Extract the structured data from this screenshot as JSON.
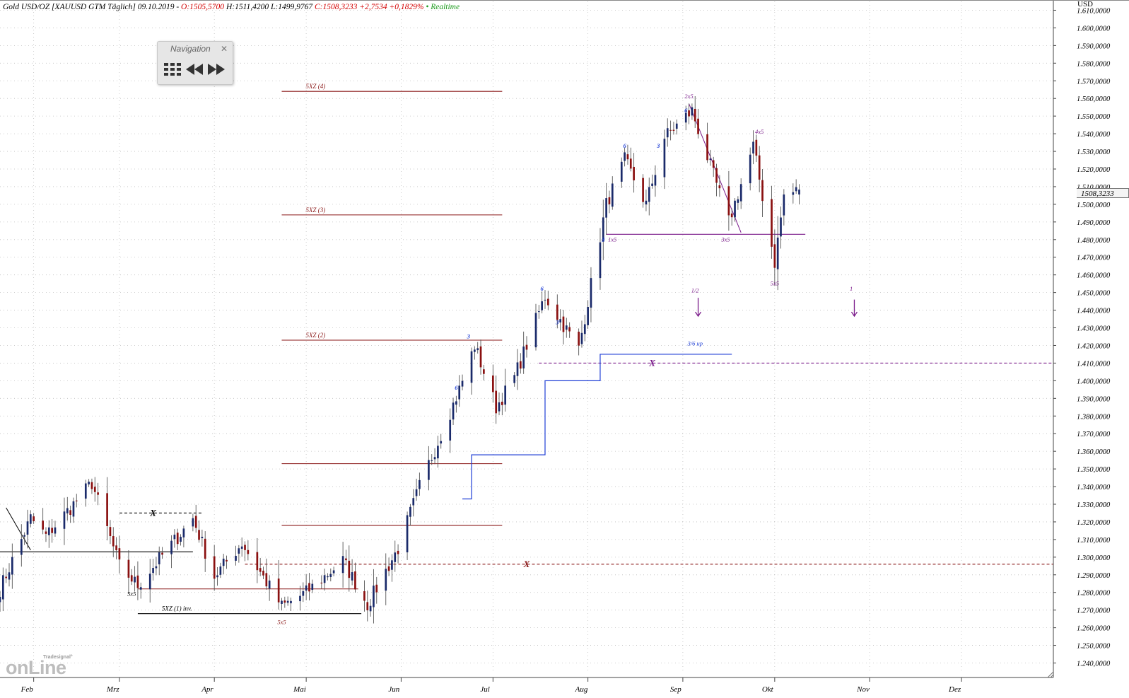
{
  "header": {
    "instrument": "Gold USD/OZ [XAUUSD GTM Täglich] 09.10.2019 -",
    "open": "O:1505,5700",
    "high": "H:1511,4200",
    "low": "L:1499,9767",
    "close": "C:1508,3233",
    "change": "+2,7534",
    "change_pct": "+0,1829%",
    "separator": "•",
    "realtime": "Realtime"
  },
  "navigation": {
    "title": "Navigation",
    "close_icon": "close-icon",
    "buttons": [
      {
        "name": "grid-icon"
      },
      {
        "name": "rewind-icon"
      },
      {
        "name": "fast-forward-icon"
      }
    ]
  },
  "currency_label": "USD",
  "price_tag": "1508,3233",
  "logo": {
    "small": "Tradesignal°",
    "big": "onLine"
  },
  "colors": {
    "bull": "#1a2a6a",
    "bear": "#8a1010",
    "level_red": "#8b1a1a",
    "wave_purple": "#7a1a8a",
    "stop_blue": "#1f3fd6",
    "label_blue": "#1f3fd6",
    "grid": "#bfbfbf"
  },
  "chart_data": {
    "type": "candlestick",
    "instrument": "Gold USD/OZ [XAUUSD GTM Täglich]",
    "ylim": [
      1235,
      1615
    ],
    "y_ticks": [
      1240,
      1250,
      1260,
      1270,
      1280,
      1290,
      1300,
      1310,
      1320,
      1330,
      1340,
      1350,
      1360,
      1370,
      1380,
      1390,
      1400,
      1410,
      1420,
      1430,
      1440,
      1450,
      1460,
      1470,
      1480,
      1490,
      1500,
      1510,
      1520,
      1530,
      1540,
      1550,
      1560,
      1570,
      1580,
      1590,
      1600,
      1610
    ],
    "y_tick_labels": [
      "1.240,0000",
      "1.250,0000",
      "1.260,0000",
      "1.270,0000",
      "1.280,0000",
      "1.290,0000",
      "1.300,0000",
      "1.310,0000",
      "1.320,0000",
      "1.330,0000",
      "1.340,0000",
      "1.350,0000",
      "1.360,0000",
      "1.370,0000",
      "1.380,0000",
      "1.390,0000",
      "1.400,0000",
      "1.410,0000",
      "1.420,0000",
      "1.430,0000",
      "1.440,0000",
      "1.450,0000",
      "1.460,0000",
      "1.470,0000",
      "1.480,0000",
      "1.490,0000",
      "1.500,0000",
      "1.510,0000",
      "1.520,0000",
      "1.530,0000",
      "1.540,0000",
      "1.550,0000",
      "1.560,0000",
      "1.570,0000",
      "1.580,0000",
      "1.590,0000",
      "1.600,0000",
      "1.610,0000"
    ],
    "x_range": [
      "2019-01-21",
      "2019-12-31"
    ],
    "months": [
      {
        "label": "Feb",
        "date": "2019-02-01"
      },
      {
        "label": "Mrz",
        "date": "2019-03-01"
      },
      {
        "label": "Apr",
        "date": "2019-04-01"
      },
      {
        "label": "Mai",
        "date": "2019-05-01"
      },
      {
        "label": "Jun",
        "date": "2019-06-01"
      },
      {
        "label": "Jul",
        "date": "2019-07-01"
      },
      {
        "label": "Aug",
        "date": "2019-08-01"
      },
      {
        "label": "Sep",
        "date": "2019-09-01"
      },
      {
        "label": "Okt",
        "date": "2019-10-01"
      },
      {
        "label": "Nov",
        "date": "2019-11-01"
      },
      {
        "label": "Dez",
        "date": "2019-12-01"
      }
    ],
    "anchors": [
      {
        "date": "2019-01-21",
        "close": 1282
      },
      {
        "date": "2019-01-31",
        "close": 1322
      },
      {
        "date": "2019-02-05",
        "close": 1312
      },
      {
        "date": "2019-02-20",
        "close": 1342
      },
      {
        "date": "2019-03-01",
        "close": 1295
      },
      {
        "date": "2019-03-07",
        "close": 1284
      },
      {
        "date": "2019-03-25",
        "close": 1322
      },
      {
        "date": "2019-04-01",
        "close": 1289
      },
      {
        "date": "2019-04-10",
        "close": 1308
      },
      {
        "date": "2019-04-23",
        "close": 1272
      },
      {
        "date": "2019-05-01",
        "close": 1280
      },
      {
        "date": "2019-05-13",
        "close": 1298
      },
      {
        "date": "2019-05-21",
        "close": 1273
      },
      {
        "date": "2019-05-31",
        "close": 1305
      },
      {
        "date": "2019-06-07",
        "close": 1340
      },
      {
        "date": "2019-06-20",
        "close": 1395
      },
      {
        "date": "2019-06-25",
        "close": 1420
      },
      {
        "date": "2019-07-02",
        "close": 1385
      },
      {
        "date": "2019-07-08",
        "close": 1402
      },
      {
        "date": "2019-07-18",
        "close": 1448
      },
      {
        "date": "2019-07-29",
        "close": 1418
      },
      {
        "date": "2019-08-07",
        "close": 1500
      },
      {
        "date": "2019-08-13",
        "close": 1525
      },
      {
        "date": "2019-08-20",
        "close": 1500
      },
      {
        "date": "2019-08-26",
        "close": 1538
      },
      {
        "date": "2019-09-04",
        "close": 1553
      },
      {
        "date": "2019-09-16",
        "close": 1490
      },
      {
        "date": "2019-09-24",
        "close": 1533
      },
      {
        "date": "2019-10-01",
        "close": 1467
      },
      {
        "date": "2019-10-04",
        "close": 1505
      },
      {
        "date": "2019-10-09",
        "close": 1508
      }
    ],
    "last_bar": {
      "date": "2019-10-09",
      "open": 1505.57,
      "high": 1511.42,
      "low": 1499.9767,
      "close": 1508.3233
    },
    "horizontal_levels": [
      {
        "label": "5XZ (4)",
        "price": 1564,
        "from": "2019-04-23",
        "to": "2019-07-04",
        "color": "level_red"
      },
      {
        "label": "5XZ (3)",
        "price": 1494,
        "from": "2019-04-23",
        "to": "2019-07-04",
        "color": "level_red"
      },
      {
        "label": "5XZ (2)",
        "price": 1423,
        "from": "2019-04-23",
        "to": "2019-07-04",
        "color": "level_red"
      },
      {
        "label": "",
        "price": 1353,
        "from": "2019-04-23",
        "to": "2019-07-04",
        "color": "level_red"
      },
      {
        "label": "",
        "price": 1318,
        "from": "2019-04-23",
        "to": "2019-07-04",
        "color": "level_red"
      },
      {
        "label": "",
        "price": 1282,
        "from": "2019-03-07",
        "to": "2019-05-18",
        "color": "level_red"
      },
      {
        "label": "5XZ (1) inv.",
        "price": 1268,
        "from": "2019-03-07",
        "to": "2019-05-19",
        "color": "black"
      },
      {
        "label": "",
        "price": 1303,
        "from": "2019-01-21",
        "to": "2019-03-25",
        "color": "black"
      },
      {
        "label": "",
        "price": 1483,
        "from": "2019-08-07",
        "to": "2019-10-11",
        "color": "wave_purple"
      }
    ],
    "dashed_levels": [
      {
        "price": 1325,
        "from": "2019-03-01",
        "to": "2019-03-28",
        "color": "black",
        "marker": "X",
        "marker_date": "2019-03-12"
      },
      {
        "price": 1296,
        "from": "2019-04-11",
        "to": "2019-12-31",
        "color": "level_red",
        "marker": "X",
        "marker_date": "2019-07-12"
      },
      {
        "price": 1410,
        "from": "2019-07-16",
        "to": "2019-12-31",
        "color": "wave_purple",
        "marker": "X",
        "marker_date": "2019-08-22"
      }
    ],
    "trailing_stop": [
      {
        "date": "2019-06-21",
        "price": 1333
      },
      {
        "date": "2019-06-24",
        "price": 1358
      },
      {
        "date": "2019-07-18",
        "price": 1400
      },
      {
        "date": "2019-08-05",
        "price": 1415
      },
      {
        "date": "2019-09-17",
        "price": 1415
      }
    ],
    "wave_labels": [
      {
        "text": "5x5",
        "date": "2019-03-05",
        "price": 1278,
        "color": "black"
      },
      {
        "text": "5x5",
        "date": "2019-04-23",
        "price": 1262,
        "color": "level_red"
      },
      {
        "text": "1x5",
        "date": "2019-08-09",
        "price": 1479,
        "color": "wave_purple"
      },
      {
        "text": "2x5",
        "date": "2019-09-03",
        "price": 1560,
        "color": "wave_purple"
      },
      {
        "text": "3x5",
        "date": "2019-09-15",
        "price": 1479,
        "color": "wave_purple"
      },
      {
        "text": "4x5",
        "date": "2019-09-26",
        "price": 1540,
        "color": "wave_purple"
      },
      {
        "text": "5x5",
        "date": "2019-10-01",
        "price": 1454,
        "color": "wave_purple"
      },
      {
        "text": "1/2",
        "date": "2019-09-05",
        "price": 1450,
        "color": "wave_purple"
      },
      {
        "text": "1",
        "date": "2019-10-26",
        "price": 1451,
        "color": "wave_purple"
      },
      {
        "text": "3/6 up",
        "date": "2019-09-05",
        "price": 1420,
        "color": "label_blue"
      }
    ],
    "blue_counts": [
      {
        "text": "6",
        "date": "2019-06-19",
        "price": 1395
      },
      {
        "text": "3",
        "date": "2019-06-23",
        "price": 1424
      },
      {
        "text": "6",
        "date": "2019-07-17",
        "price": 1451
      },
      {
        "text": "3",
        "date": "2019-07-22",
        "price": 1432
      },
      {
        "text": "3",
        "date": "2019-08-06",
        "price": 1479
      },
      {
        "text": "6",
        "date": "2019-08-13",
        "price": 1532
      },
      {
        "text": "3",
        "date": "2019-08-24",
        "price": 1532
      },
      {
        "text": "6",
        "date": "2019-09-02",
        "price": 1552
      }
    ],
    "arrows": [
      {
        "date": "2019-09-06",
        "price_from": 1447,
        "price_to": 1437
      },
      {
        "date": "2019-10-27",
        "price_from": 1446,
        "price_to": 1437
      }
    ],
    "trend_lines": [
      {
        "from": {
          "date": "2019-01-23",
          "price": 1328
        },
        "to": {
          "date": "2019-01-31",
          "price": 1304
        },
        "color": "black"
      },
      {
        "from": {
          "date": "2019-09-03",
          "price": 1557
        },
        "to": {
          "date": "2019-09-20",
          "price": 1484
        },
        "color": "wave_purple"
      }
    ]
  }
}
